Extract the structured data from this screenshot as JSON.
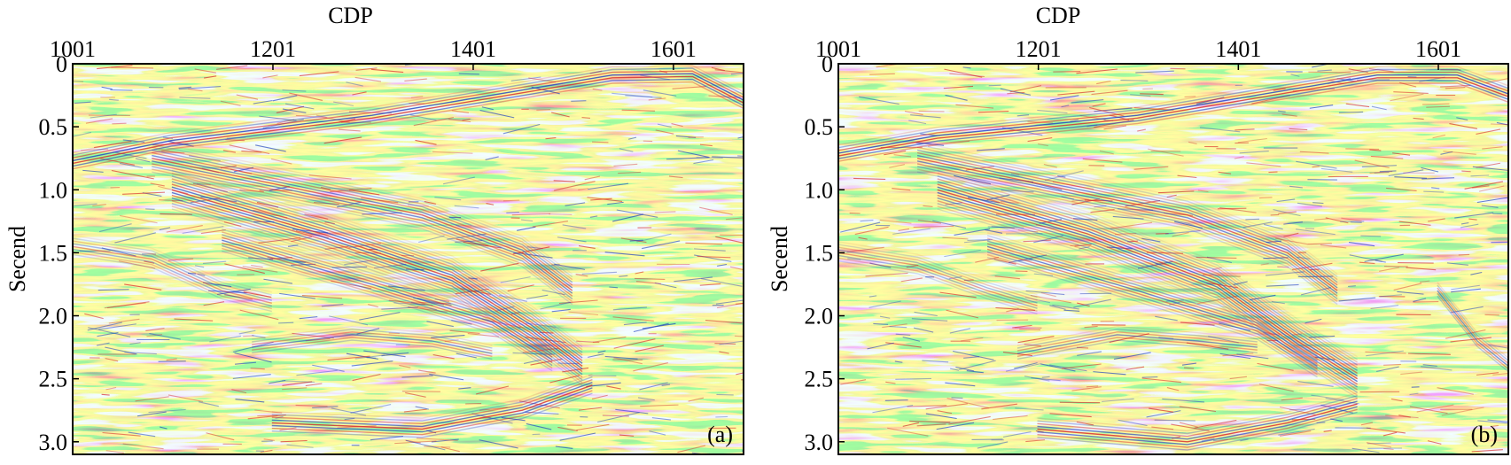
{
  "chart_data": [
    {
      "type": "heatmap",
      "panel_label": "(a)",
      "xlabel": "CDP",
      "ylabel": "Secend",
      "xlim": [
        1001,
        1671
      ],
      "ylim": [
        0,
        3.1
      ],
      "y_inverted": true,
      "x_ticks": [
        "1001",
        "1201",
        "1401",
        "1601"
      ],
      "y_ticks": [
        "0",
        "0.5",
        "1.0",
        "1.5",
        "2.0",
        "2.5",
        "3.0"
      ],
      "colormap": {
        "positive": "#d6282b",
        "zero": "#ffffff",
        "negative": "#1f3fc0"
      },
      "reflectors": [
        {
          "points": [
            [
              1001,
              0.78
            ],
            [
              1100,
              0.62
            ],
            [
              1300,
              0.42
            ],
            [
              1450,
              0.22
            ],
            [
              1540,
              0.1
            ],
            [
              1620,
              0.09
            ],
            [
              1671,
              0.3
            ]
          ],
          "strength": 1.0,
          "band": 7
        },
        {
          "points": [
            [
              1080,
              0.75
            ],
            [
              1200,
              0.95
            ],
            [
              1350,
              1.2
            ],
            [
              1450,
              1.5
            ],
            [
              1500,
              1.8
            ]
          ],
          "strength": 0.75,
          "band": 12
        },
        {
          "points": [
            [
              1100,
              1.0
            ],
            [
              1250,
              1.35
            ],
            [
              1380,
              1.7
            ],
            [
              1460,
              2.1
            ],
            [
              1510,
              2.4
            ]
          ],
          "strength": 0.85,
          "band": 16
        },
        {
          "points": [
            [
              1150,
              1.4
            ],
            [
              1300,
              1.75
            ],
            [
              1420,
              2.05
            ],
            [
              1480,
              2.35
            ]
          ],
          "strength": 0.7,
          "band": 10
        },
        {
          "points": [
            [
              1180,
              2.25
            ],
            [
              1280,
              2.15
            ],
            [
              1360,
              2.2
            ],
            [
              1420,
              2.3
            ]
          ],
          "strength": 0.6,
          "band": 6
        },
        {
          "points": [
            [
              1200,
              2.85
            ],
            [
              1350,
              2.9
            ],
            [
              1450,
              2.75
            ],
            [
              1520,
              2.55
            ]
          ],
          "strength": 0.9,
          "band": 8
        },
        {
          "points": [
            [
              1001,
              1.45
            ],
            [
              1080,
              1.55
            ],
            [
              1150,
              1.8
            ],
            [
              1200,
              1.9
            ]
          ],
          "strength": 0.5,
          "band": 8
        }
      ]
    },
    {
      "type": "heatmap",
      "panel_label": "(b)",
      "xlabel": "CDP",
      "ylabel": "Secend",
      "xlim": [
        1001,
        1671
      ],
      "ylim": [
        0,
        3.1
      ],
      "y_inverted": true,
      "x_ticks": [
        "1001",
        "1201",
        "1401",
        "1601"
      ],
      "y_ticks": [
        "0",
        "0.5",
        "1.0",
        "1.5",
        "2.0",
        "2.5",
        "3.0"
      ],
      "colormap": {
        "positive": "#d6282b",
        "zero": "#ffffff",
        "negative": "#1f3fc0"
      },
      "reflectors": [
        {
          "points": [
            [
              1001,
              0.72
            ],
            [
              1100,
              0.58
            ],
            [
              1300,
              0.42
            ],
            [
              1450,
              0.22
            ],
            [
              1540,
              0.1
            ],
            [
              1620,
              0.1
            ],
            [
              1671,
              0.25
            ]
          ],
          "strength": 1.0,
          "band": 7
        },
        {
          "points": [
            [
              1080,
              0.75
            ],
            [
              1200,
              0.95
            ],
            [
              1350,
              1.2
            ],
            [
              1450,
              1.5
            ],
            [
              1500,
              1.8
            ]
          ],
          "strength": 0.75,
          "band": 12
        },
        {
          "points": [
            [
              1100,
              1.0
            ],
            [
              1250,
              1.35
            ],
            [
              1380,
              1.75
            ],
            [
              1460,
              2.2
            ],
            [
              1520,
              2.5
            ]
          ],
          "strength": 0.85,
          "band": 16
        },
        {
          "points": [
            [
              1150,
              1.45
            ],
            [
              1300,
              1.8
            ],
            [
              1420,
              2.1
            ],
            [
              1480,
              2.4
            ]
          ],
          "strength": 0.7,
          "band": 10
        },
        {
          "points": [
            [
              1180,
              2.3
            ],
            [
              1280,
              2.15
            ],
            [
              1360,
              2.2
            ],
            [
              1420,
              2.25
            ]
          ],
          "strength": 0.6,
          "band": 6
        },
        {
          "points": [
            [
              1200,
              2.9
            ],
            [
              1350,
              3.0
            ],
            [
              1450,
              2.85
            ],
            [
              1520,
              2.7
            ]
          ],
          "strength": 0.9,
          "band": 8
        },
        {
          "points": [
            [
              1001,
              1.5
            ],
            [
              1080,
              1.6
            ],
            [
              1150,
              1.8
            ],
            [
              1200,
              1.92
            ]
          ],
          "strength": 0.5,
          "band": 8
        },
        {
          "points": [
            [
              1600,
              1.8
            ],
            [
              1640,
              2.2
            ],
            [
              1671,
              2.4
            ]
          ],
          "strength": 0.6,
          "band": 6
        }
      ]
    }
  ]
}
